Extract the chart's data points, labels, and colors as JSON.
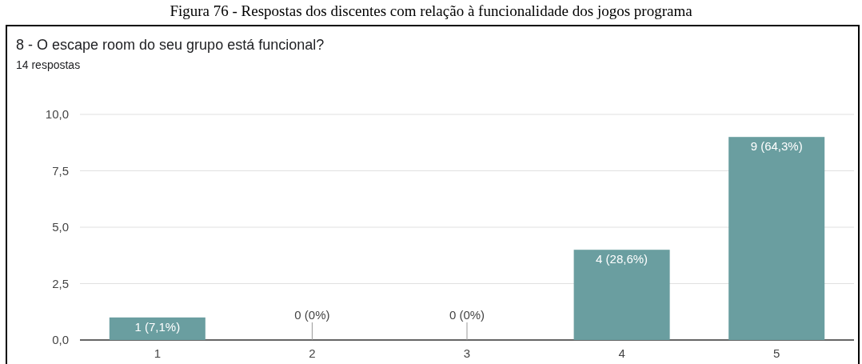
{
  "chart_data": {
    "type": "bar",
    "title": "8 - O escape room do seu grupo está funcional?",
    "subtitle": "14 respostas",
    "annotations": [
      "Figura 76 - Respostas dos discentes com relação à funcionalidade dos jogos programa"
    ],
    "categories": [
      "1",
      "2",
      "3",
      "4",
      "5"
    ],
    "values": [
      1,
      0,
      0,
      4,
      9
    ],
    "value_labels": [
      "1 (7,1%)",
      "0 (0%)",
      "0 (0%)",
      "4 (28,6%)",
      "9 (64,3%)"
    ],
    "color": "#6a9ea0",
    "ylim": [
      0,
      10
    ],
    "yticks": [
      {
        "value": 0,
        "label": "0,0"
      },
      {
        "value": 2.5,
        "label": "2,5"
      },
      {
        "value": 5,
        "label": "5,0"
      },
      {
        "value": 7.5,
        "label": "7,5"
      },
      {
        "value": 10,
        "label": "10,0"
      }
    ],
    "grid": "y"
  }
}
